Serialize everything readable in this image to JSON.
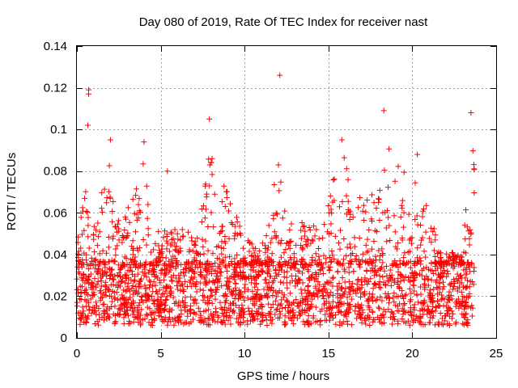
{
  "chart_data": {
    "type": "scatter",
    "title": "Day 080 of 2019, Rate Of TEC Index for receiver nast",
    "xlabel": "GPS time / hours",
    "ylabel": "ROTI / TECUs",
    "xlim": [
      0,
      25
    ],
    "ylim": [
      0,
      0.14
    ],
    "xticks": [
      0,
      5,
      10,
      15,
      20,
      25
    ],
    "xtick_labels": [
      "0",
      "5",
      "10",
      "15",
      "20",
      "25"
    ],
    "yticks": [
      0,
      0.02,
      0.04,
      0.06,
      0.08,
      0.1,
      0.12,
      0.14
    ],
    "ytick_labels": [
      "0",
      "0.02",
      "0.04",
      "0.06",
      "0.08",
      "0.1",
      "0.12",
      "0.14"
    ],
    "grid": true,
    "marker": "+",
    "color": "#ff0000",
    "data_coverage": [
      0,
      23.7
    ],
    "notable_points": [
      {
        "x": 0.7,
        "y": 0.119
      },
      {
        "x": 0.7,
        "y": 0.117
      },
      {
        "x": 0.65,
        "y": 0.102
      },
      {
        "x": 12.1,
        "y": 0.126
      },
      {
        "x": 18.3,
        "y": 0.109
      },
      {
        "x": 23.5,
        "y": 0.108
      },
      {
        "x": 7.9,
        "y": 0.105
      },
      {
        "x": 2.0,
        "y": 0.095
      },
      {
        "x": 4.0,
        "y": 0.094
      },
      {
        "x": 15.8,
        "y": 0.095
      },
      {
        "x": 5.4,
        "y": 0.08
      },
      {
        "x": 20.3,
        "y": 0.088
      }
    ],
    "burst_envelope": [
      {
        "x": 0.0,
        "y": 0.05
      },
      {
        "x": 0.6,
        "y": 0.075
      },
      {
        "x": 1.0,
        "y": 0.06
      },
      {
        "x": 1.5,
        "y": 0.07
      },
      {
        "x": 2.0,
        "y": 0.092
      },
      {
        "x": 2.5,
        "y": 0.06
      },
      {
        "x": 3.0,
        "y": 0.065
      },
      {
        "x": 3.5,
        "y": 0.07
      },
      {
        "x": 4.0,
        "y": 0.09
      },
      {
        "x": 4.5,
        "y": 0.055
      },
      {
        "x": 5.0,
        "y": 0.05
      },
      {
        "x": 5.5,
        "y": 0.06
      },
      {
        "x": 6.0,
        "y": 0.05
      },
      {
        "x": 6.5,
        "y": 0.055
      },
      {
        "x": 7.0,
        "y": 0.045
      },
      {
        "x": 7.5,
        "y": 0.065
      },
      {
        "x": 7.9,
        "y": 0.098
      },
      {
        "x": 8.5,
        "y": 0.07
      },
      {
        "x": 9.0,
        "y": 0.08
      },
      {
        "x": 9.5,
        "y": 0.06
      },
      {
        "x": 10.0,
        "y": 0.05
      },
      {
        "x": 10.5,
        "y": 0.045
      },
      {
        "x": 11.0,
        "y": 0.045
      },
      {
        "x": 11.5,
        "y": 0.055
      },
      {
        "x": 12.0,
        "y": 0.09
      },
      {
        "x": 12.5,
        "y": 0.06
      },
      {
        "x": 13.0,
        "y": 0.055
      },
      {
        "x": 13.5,
        "y": 0.06
      },
      {
        "x": 14.0,
        "y": 0.055
      },
      {
        "x": 14.5,
        "y": 0.05
      },
      {
        "x": 15.0,
        "y": 0.065
      },
      {
        "x": 15.5,
        "y": 0.085
      },
      {
        "x": 16.0,
        "y": 0.09
      },
      {
        "x": 16.5,
        "y": 0.06
      },
      {
        "x": 17.0,
        "y": 0.07
      },
      {
        "x": 17.5,
        "y": 0.065
      },
      {
        "x": 18.0,
        "y": 0.085
      },
      {
        "x": 18.4,
        "y": 0.1
      },
      {
        "x": 19.0,
        "y": 0.085
      },
      {
        "x": 19.5,
        "y": 0.08
      },
      {
        "x": 20.0,
        "y": 0.07
      },
      {
        "x": 20.3,
        "y": 0.08
      },
      {
        "x": 21.0,
        "y": 0.065
      },
      {
        "x": 21.5,
        "y": 0.045
      },
      {
        "x": 22.0,
        "y": 0.045
      },
      {
        "x": 22.5,
        "y": 0.04
      },
      {
        "x": 23.0,
        "y": 0.04
      },
      {
        "x": 23.5,
        "y": 0.1
      }
    ],
    "baseline_band": [
      0.01,
      0.035
    ]
  }
}
